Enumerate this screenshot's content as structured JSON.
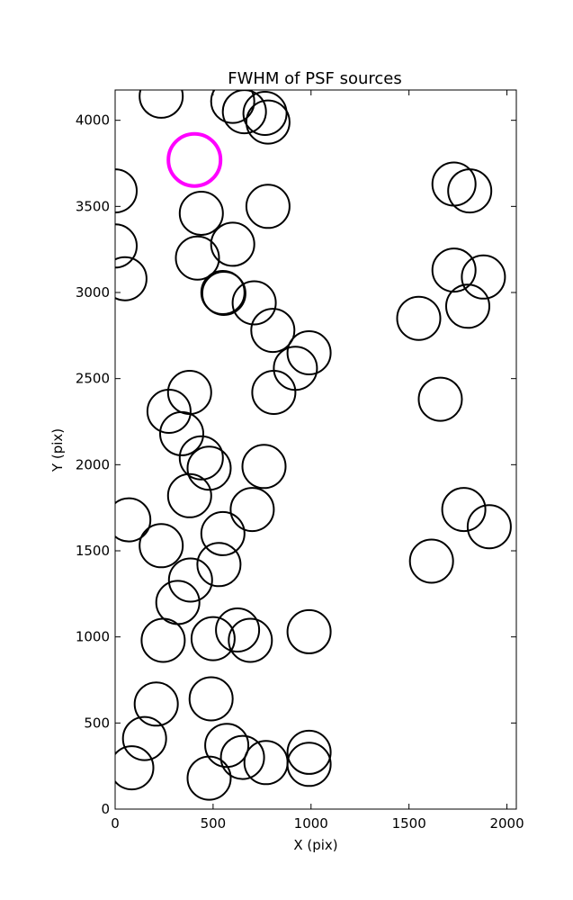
{
  "chart_data": {
    "type": "scatter",
    "title": "FWHM of PSF sources",
    "xlabel": "X (pix)",
    "ylabel": "Y (pix)",
    "xlim": [
      0,
      2048
    ],
    "ylim": [
      0,
      4176
    ],
    "xticks": [
      0,
      500,
      1000,
      1500,
      2000
    ],
    "yticks": [
      0,
      500,
      1000,
      1500,
      2000,
      2500,
      3000,
      3500,
      4000
    ],
    "grid": false,
    "legend": "none",
    "marker": "open circle",
    "series": [
      {
        "color": "#000000",
        "points": [
          [
            235,
            4140
          ],
          [
            600,
            4110
          ],
          [
            660,
            4050
          ],
          [
            765,
            4040
          ],
          [
            780,
            3990
          ],
          [
            0,
            3590
          ],
          [
            440,
            3460
          ],
          [
            780,
            3500
          ],
          [
            1730,
            3630
          ],
          [
            1810,
            3590
          ],
          [
            0,
            3270
          ],
          [
            600,
            3280
          ],
          [
            420,
            3200
          ],
          [
            50,
            3080
          ],
          [
            1730,
            3130
          ],
          [
            1880,
            3090
          ],
          [
            550,
            3000
          ],
          [
            555,
            2995
          ],
          [
            710,
            2940
          ],
          [
            1800,
            2920
          ],
          [
            1550,
            2850
          ],
          [
            805,
            2780
          ],
          [
            990,
            2650
          ],
          [
            920,
            2560
          ],
          [
            810,
            2420
          ],
          [
            380,
            2420
          ],
          [
            1660,
            2380
          ],
          [
            275,
            2310
          ],
          [
            340,
            2180
          ],
          [
            440,
            2040
          ],
          [
            480,
            1980
          ],
          [
            760,
            1990
          ],
          [
            380,
            1820
          ],
          [
            70,
            1680
          ],
          [
            700,
            1740
          ],
          [
            1780,
            1740
          ],
          [
            1910,
            1640
          ],
          [
            550,
            1600
          ],
          [
            235,
            1530
          ],
          [
            1615,
            1440
          ],
          [
            530,
            1420
          ],
          [
            385,
            1330
          ],
          [
            320,
            1200
          ],
          [
            245,
            980
          ],
          [
            625,
            1040
          ],
          [
            990,
            1030
          ],
          [
            500,
            990
          ],
          [
            690,
            980
          ],
          [
            490,
            640
          ],
          [
            210,
            610
          ],
          [
            150,
            410
          ],
          [
            570,
            370
          ],
          [
            990,
            330
          ],
          [
            650,
            300
          ],
          [
            770,
            270
          ],
          [
            990,
            260
          ],
          [
            85,
            240
          ],
          [
            480,
            180
          ]
        ]
      },
      {
        "color": "#ff00ff",
        "points": [
          [
            405,
            3770
          ]
        ]
      }
    ]
  }
}
